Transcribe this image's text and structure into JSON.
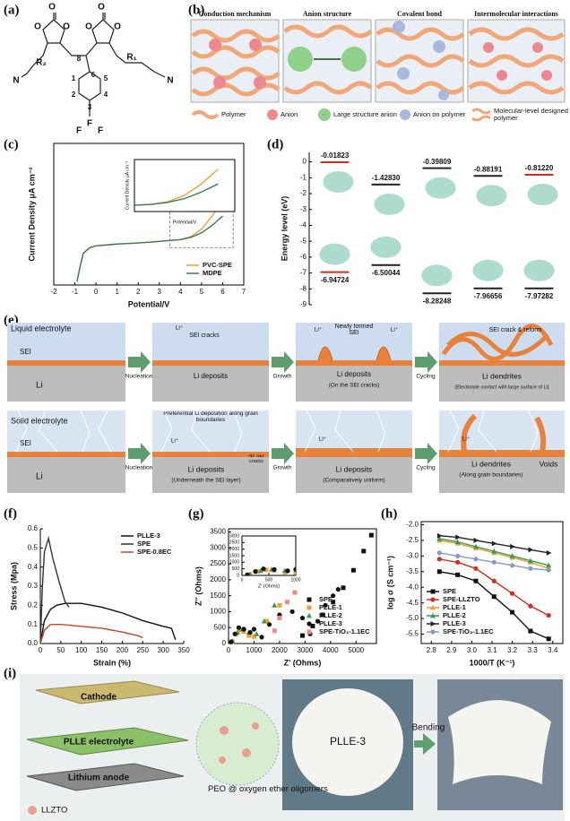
{
  "panel_a": {
    "label": "(a)",
    "atoms": [
      "O",
      "O",
      "O",
      "O",
      "O",
      "O",
      "R₂",
      "8",
      "6",
      "R₁",
      "N",
      "N",
      "1",
      "2",
      "3",
      "4",
      "5",
      "F",
      "F",
      "F"
    ]
  },
  "panel_b": {
    "label": "(b)",
    "titles": [
      "Conduction mechanism",
      "Anion structure",
      "Covalent bond",
      "Intermolecular interactions"
    ],
    "legend": [
      "Polymer",
      "Anion",
      "Large structure anion",
      "Anion on polymer",
      "Molecular-level designed polymer"
    ]
  },
  "chart_data": [
    {
      "type": "line",
      "panel": "(c)",
      "xlabel": "Potential/V",
      "ylabel": "Current Density μA cm⁻²",
      "xlim": [
        -2,
        7
      ],
      "xticks": [
        -2,
        -1,
        0,
        1,
        2,
        3,
        4,
        5,
        6,
        7
      ],
      "ylim": [
        -0.6,
        3.2
      ],
      "frame": true,
      "legend": "lower right",
      "series": [
        {
          "name": "PVC-SPE",
          "color": "#f0a030",
          "x": [
            -0.9,
            -0.75,
            -0.6,
            -0.3,
            0,
            1,
            2,
            3,
            4,
            4.5,
            5,
            5.5,
            6
          ],
          "values": [
            -0.5,
            -0.1,
            0.25,
            0.4,
            0.45,
            0.5,
            0.53,
            0.57,
            0.62,
            0.7,
            0.9,
            1.25,
            1.7
          ]
        },
        {
          "name": "MDPE",
          "color": "#3a7a5a",
          "x": [
            -0.9,
            -0.75,
            -0.6,
            -0.3,
            0,
            1,
            2,
            3,
            4,
            4.5,
            5,
            5.5,
            6
          ],
          "values": [
            -0.5,
            -0.1,
            0.25,
            0.4,
            0.45,
            0.5,
            0.53,
            0.57,
            0.62,
            0.68,
            0.8,
            1.0,
            1.25
          ]
        }
      ],
      "inset": {
        "xlim": [
          3.5,
          6.5
        ],
        "ylim": [
          0.4,
          2.0
        ],
        "xlabel": "Potential/V",
        "ylabel": "Current Density μA cm⁻²"
      }
    },
    {
      "type": "energy-level",
      "panel": "(d)",
      "ylabel": "Energy level (eV)",
      "ylim": [
        -9,
        0.6
      ],
      "yticks": [
        0,
        -1,
        -2,
        -3,
        -4,
        -5,
        -6,
        -7,
        -8,
        -9
      ],
      "categories": [
        null,
        null,
        null,
        null,
        null
      ],
      "series": [
        {
          "values": [
            -0.01823,
            -1.4283,
            -0.39809,
            -0.88191,
            -0.8122
          ],
          "value_labels": [
            "-0.01823",
            "-1.42830",
            "-0.39809",
            "-0.88191",
            "-0.81220"
          ],
          "colors": [
            "#d03020",
            "#222222",
            "#222222",
            "#222222",
            "#d03020"
          ],
          "label_position": "above"
        },
        {
          "values": [
            -6.94724,
            -6.50044,
            -8.28248,
            -7.96656,
            -7.97282
          ],
          "value_labels": [
            "-6.94724",
            "-6.50044",
            "-8.28248",
            "-7.96656",
            "-7.97282"
          ],
          "colors": [
            "#d03020",
            "#222222",
            "#222222",
            "#222222",
            "#222222"
          ],
          "label_position": "below"
        }
      ]
    },
    {
      "type": "line",
      "panel": "(f)",
      "xlabel": "Strain (%)",
      "ylabel": "Stress (Mpa)",
      "xlim": [
        0,
        350
      ],
      "xticks": [
        0,
        50,
        100,
        150,
        200,
        250,
        300,
        350
      ],
      "ylim": [
        0,
        0.6
      ],
      "yticks": [
        {
          "value": 0,
          "label": "0.0"
        },
        0.1,
        0.2,
        0.3,
        0.4,
        0.5,
        0.6
      ],
      "frame": false,
      "legend": "upper right",
      "series": [
        {
          "name": "PLLE-3",
          "color": "#111111",
          "x": [
            0,
            10,
            25,
            40,
            60,
            100,
            150,
            200,
            250,
            300,
            320,
            330
          ],
          "values": [
            0,
            0.12,
            0.18,
            0.2,
            0.21,
            0.21,
            0.19,
            0.16,
            0.12,
            0.09,
            0.08,
            0.02
          ]
        },
        {
          "name": "SPE",
          "color": "#333333",
          "x": [
            0,
            5,
            10,
            20,
            30,
            45,
            60,
            70
          ],
          "values": [
            0,
            0.3,
            0.48,
            0.55,
            0.45,
            0.33,
            0.22,
            0.19
          ]
        },
        {
          "name": "SPE-0.8EC",
          "color": "#d04020",
          "x": [
            0,
            10,
            25,
            50,
            100,
            150,
            200,
            240,
            250
          ],
          "values": [
            0,
            0.07,
            0.1,
            0.1,
            0.09,
            0.08,
            0.06,
            0.04,
            0.03
          ]
        }
      ]
    },
    {
      "type": "scatter",
      "panel": "(g)",
      "xlabel": "Z' (Ohms)",
      "ylabel": "Z'' (Ohms)",
      "xlim": [
        0,
        5800
      ],
      "xticks": [
        0,
        1000,
        2000,
        3000,
        4000,
        5000
      ],
      "ylim": [
        0,
        3600
      ],
      "yticks": [
        0,
        500,
        1000,
        1500,
        2000,
        2500,
        3000,
        3500
      ],
      "frame": true,
      "legend": "lower right",
      "series": [
        {
          "name": "SPE",
          "color": "#111111",
          "marker": "square",
          "x": [
            2900,
            3300,
            3700,
            4100,
            4500,
            4900,
            5300,
            5600
          ],
          "values": [
            250,
            550,
            900,
            1300,
            1750,
            2300,
            2900,
            3400
          ]
        },
        {
          "name": "PLLE-1",
          "color": "#f0a030",
          "marker": "square",
          "x": [
            150,
            300,
            450,
            600,
            800,
            1000,
            1500,
            2000
          ],
          "values": [
            60,
            300,
            420,
            380,
            250,
            220,
            700,
            1200
          ]
        },
        {
          "name": "PLLE-2",
          "color": "#3a9a50",
          "marker": "triangle",
          "x": [
            150,
            350,
            550,
            800,
            1100,
            1400,
            1800
          ],
          "values": [
            80,
            350,
            450,
            350,
            300,
            700,
            1200
          ]
        },
        {
          "name": "PLLE-3",
          "color": "#111111",
          "marker": "circle",
          "x": [
            100,
            250,
            400,
            600,
            850,
            1000,
            1300,
            1600,
            2000,
            2500,
            2900,
            3200,
            3500,
            3800,
            4100,
            4300
          ],
          "values": [
            50,
            300,
            500,
            450,
            350,
            450,
            200,
            600,
            900,
            1000,
            800,
            300,
            700,
            1200,
            1500,
            1700
          ]
        },
        {
          "name": "SPE-TiO₂-1.1EC",
          "color": "#f08a80",
          "marker": "square",
          "x": [
            1800,
            2000,
            2300,
            2600
          ],
          "values": [
            400,
            800,
            1300,
            1600
          ]
        }
      ],
      "inset": {
        "xlim": [
          0,
          1000
        ],
        "ylim": [
          0,
          3000
        ],
        "xticks": [
          0,
          500,
          1000
        ],
        "yticks": [
          0,
          500,
          1000,
          1500,
          2000,
          2500,
          3000
        ],
        "xlabel": "Z' (Ohms)"
      }
    },
    {
      "type": "line",
      "panel": "(h)",
      "markers": true,
      "xlabel": "1000/T (K⁻¹)",
      "ylabel": "log σ (S cm⁻¹)",
      "xlim": [
        2.75,
        3.45
      ],
      "xticks": [
        2.8,
        2.9,
        {
          "value": 3,
          "label": "3.0"
        },
        3.1,
        3.2,
        3.3,
        3.4
      ],
      "ylim": [
        -5.8,
        -1.9
      ],
      "yticks": [
        {
          "value": -2,
          "label": "-2.0"
        },
        -2.5,
        {
          "value": -3,
          "label": "-3.0"
        },
        -3.5,
        {
          "value": -4,
          "label": "-4.0"
        },
        -4.5,
        {
          "value": -5,
          "label": "-5.0"
        },
        -5.5
      ],
      "frame": true,
      "legend": "lower left",
      "x": [
        2.84,
        2.93,
        3.02,
        3.11,
        3.2,
        3.29,
        3.38
      ],
      "series": [
        {
          "name": "SPE",
          "color": "#111111",
          "marker": "square",
          "values": [
            -3.5,
            -3.6,
            -3.8,
            -4.3,
            -4.8,
            -5.4,
            -5.65
          ]
        },
        {
          "name": "SPE-LLZTO",
          "color": "#d03020",
          "marker": "circle",
          "values": [
            -3.1,
            -3.2,
            -3.4,
            -3.8,
            -4.2,
            -4.6,
            -4.9
          ]
        },
        {
          "name": "PLLE-1",
          "color": "#f0a030",
          "marker": "triangle",
          "values": [
            -2.5,
            -2.6,
            -2.75,
            -2.9,
            -3.05,
            -3.2,
            -3.4
          ]
        },
        {
          "name": "PLLE-2",
          "color": "#3a9a50",
          "marker": "triangle",
          "values": [
            -2.45,
            -2.55,
            -2.7,
            -2.85,
            -3.0,
            -3.15,
            -3.3
          ]
        },
        {
          "name": "PLLE-3",
          "color": "#222222",
          "marker": "triangle-right",
          "values": [
            -2.35,
            -2.4,
            -2.5,
            -2.6,
            -2.7,
            -2.8,
            -2.9
          ]
        },
        {
          "name": "SPE-TiO₂-1.1EC",
          "color": "#8899cc",
          "marker": "circle",
          "values": [
            -2.9,
            -3.0,
            -3.1,
            -3.2,
            -3.3,
            -3.4,
            -3.45
          ]
        }
      ]
    }
  ],
  "panel_e": {
    "label": "(e)",
    "texts": [
      "Liquid electrolyte",
      "SEI",
      "Li",
      "Nucleation",
      "SEI cracks",
      "Li⁺",
      "Li deposits",
      "Growth",
      "Newly formed SEI",
      "Li⁺",
      "Li⁺",
      "Li deposits",
      "(On the SEI cracks)",
      "Cycling",
      "SEI crack & reform",
      "Li dendrites",
      "(Electrolyte contact with large surface of Li)",
      "Solid electrolyte",
      "SEI",
      "Li",
      "Nucleation",
      "Preferential Li deposition along grain boundaries",
      "Li⁺",
      "No SEI cracks",
      "Li deposits",
      "(Underneath the SEI layer)",
      "Growth",
      "Li⁺",
      "Li deposits",
      "(Comparatively uniform)",
      "Cycling",
      "Li⁺",
      "Li dendrites",
      "(Along grain boundaries)",
      "Voids"
    ]
  },
  "panel_i": {
    "label": "(i)",
    "texts": [
      "Cathode",
      "PLLE electrolyte",
      "Lithium anode",
      "LLZTO",
      "PEO @ oxygen ether oligomers",
      "PLLE-3",
      "Bending"
    ]
  }
}
